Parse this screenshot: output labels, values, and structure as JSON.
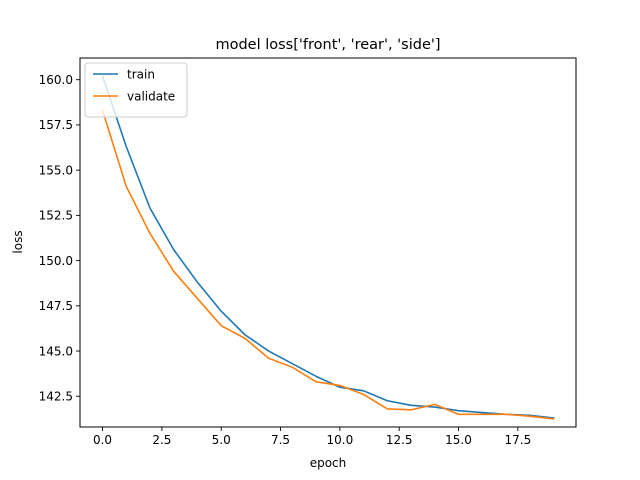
{
  "chart_data": {
    "type": "line",
    "title": "model loss['front', 'rear', 'side']",
    "xlabel": "epoch",
    "ylabel": "loss",
    "xlim": [
      -0.95,
      19.95
    ],
    "ylim": [
      140.8,
      161.2
    ],
    "xticks": [
      0.0,
      2.5,
      5.0,
      7.5,
      10.0,
      12.5,
      15.0,
      17.5
    ],
    "xtick_labels": [
      "0.0",
      "2.5",
      "5.0",
      "7.5",
      "10.0",
      "12.5",
      "15.0",
      "17.5"
    ],
    "yticks": [
      142.5,
      145.0,
      147.5,
      150.0,
      152.5,
      155.0,
      157.5,
      160.0
    ],
    "ytick_labels": [
      "142.5",
      "145.0",
      "147.5",
      "150.0",
      "152.5",
      "155.0",
      "157.5",
      "160.0"
    ],
    "grid": false,
    "legend": "top-left",
    "x": [
      0,
      1,
      2,
      3,
      4,
      5,
      6,
      7,
      8,
      9,
      10,
      11,
      12,
      13,
      14,
      15,
      16,
      17,
      18,
      19
    ],
    "series": [
      {
        "name": "train",
        "color": "#1f77b4",
        "values": [
          160.2,
          156.3,
          152.9,
          150.6,
          148.8,
          147.2,
          145.9,
          145.0,
          144.3,
          143.6,
          143.0,
          142.8,
          142.25,
          142.0,
          141.9,
          141.7,
          141.6,
          141.5,
          141.45,
          141.3
        ]
      },
      {
        "name": "validate",
        "color": "#ff7f0e",
        "values": [
          158.3,
          154.1,
          151.5,
          149.4,
          147.9,
          146.4,
          145.7,
          144.6,
          144.1,
          143.3,
          143.1,
          142.6,
          141.8,
          141.75,
          142.05,
          141.5,
          141.5,
          141.5,
          141.4,
          141.25
        ]
      }
    ]
  }
}
